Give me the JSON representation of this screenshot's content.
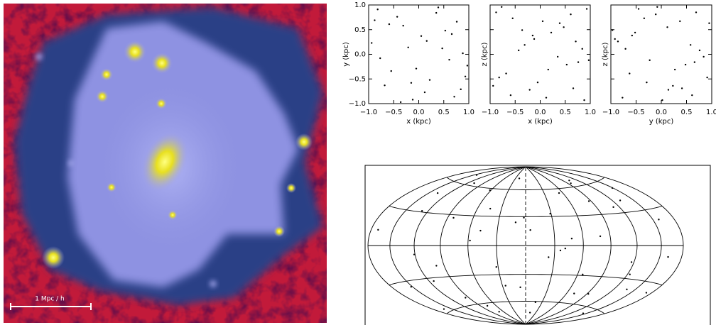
{
  "chart_data": [
    {
      "type": "image",
      "annotation": "1 Mpc / h"
    },
    {
      "type": "scatter",
      "xlabel": "x (kpc)",
      "ylabel": "y (kpc)",
      "color": "#000000",
      "xlim": [
        -1,
        1
      ],
      "ylim": [
        -1,
        1
      ],
      "xticks": [
        {
          "value": -1,
          "label": "−1.0"
        },
        {
          "value": -0.5,
          "label": "−0.5"
        },
        {
          "value": 0,
          "label": "0.0"
        },
        {
          "value": 0.5,
          "label": "0.5"
        },
        {
          "value": 1,
          "label": "1.0"
        }
      ],
      "yticks": [
        {
          "value": -1,
          "label": "−1.0"
        },
        {
          "value": -0.5,
          "label": "−0.5"
        },
        {
          "value": 0,
          "label": "0.0"
        },
        {
          "value": 0.5,
          "label": "0.5"
        },
        {
          "value": 1,
          "label": "1.0"
        }
      ],
      "x": [
        -0.82,
        -0.55,
        -0.31,
        0.12,
        0.47,
        0.76,
        0.93,
        -0.94,
        -0.12,
        0.35,
        0.61,
        -0.68,
        0.05,
        0.88,
        -0.43,
        0.22,
        -0.21,
        0.71,
        -0.77,
        0.53,
        -0.05,
        0.39,
        -0.59,
        0.84,
        -0.36,
        0.16,
        -0.88,
        0.66,
        -0.15,
        0.97
      ],
      "values": [
        0.91,
        -0.34,
        0.58,
        -0.77,
        0.12,
        0.66,
        -0.45,
        0.23,
        -0.92,
        0.84,
        -0.11,
        -0.63,
        0.37,
        0.02,
        0.76,
        -0.52,
        0.14,
        -0.86,
        -0.08,
        0.48,
        -0.29,
        0.95,
        0.61,
        -0.71,
        -0.97,
        0.27,
        0.69,
        0.41,
        -0.58,
        -0.23
      ]
    },
    {
      "type": "scatter",
      "xlabel": "x (kpc)",
      "ylabel": "z (kpc)",
      "color": "#000000",
      "xlim": [
        -1,
        1
      ],
      "ylim": [
        -1,
        1
      ],
      "xticks": [
        {
          "value": -1,
          "label": "−1.0"
        },
        {
          "value": -0.5,
          "label": "−0.5"
        },
        {
          "value": 0,
          "label": "0.0"
        },
        {
          "value": 0.5,
          "label": "0.5"
        },
        {
          "value": 1,
          "label": "1.0"
        }
      ],
      "yticks": [
        -1,
        -0.5,
        0,
        0.5,
        1
      ],
      "x": [
        -0.82,
        -0.55,
        -0.31,
        0.12,
        0.47,
        0.76,
        0.93,
        -0.94,
        -0.12,
        0.35,
        0.61,
        -0.68,
        0.05,
        0.88,
        -0.43,
        0.22,
        -0.21,
        0.71,
        -0.77,
        0.53,
        -0.05,
        0.39,
        -0.59,
        0.84,
        -0.36,
        0.16,
        -0.88,
        0.66,
        -0.15,
        0.97
      ],
      "values": [
        -0.47,
        0.73,
        0.19,
        -0.88,
        0.55,
        -0.16,
        0.92,
        -0.64,
        0.31,
        -0.05,
        0.81,
        -0.39,
        0.67,
        -0.93,
        0.08,
        0.44,
        -0.72,
        0.26,
        0.96,
        -0.21,
        -0.57,
        0.63,
        -0.83,
        0.11,
        0.49,
        -0.31,
        0.85,
        -0.69,
        0.38,
        -0.12
      ]
    },
    {
      "type": "scatter",
      "xlabel": "y (kpc)",
      "ylabel": "z (kpc)",
      "color": "#000000",
      "xlim": [
        -1,
        1
      ],
      "ylim": [
        -1,
        1
      ],
      "xticks": [
        {
          "value": -1,
          "label": "−1.0"
        },
        {
          "value": -0.5,
          "label": "−0.5"
        },
        {
          "value": 0,
          "label": "0.0"
        },
        {
          "value": 0.5,
          "label": "0.5"
        },
        {
          "value": 1,
          "label": "1.0"
        }
      ],
      "yticks": [
        -1,
        -0.5,
        0,
        0.5,
        1
      ],
      "x": [
        0.91,
        -0.34,
        0.58,
        -0.77,
        0.12,
        0.66,
        -0.45,
        0.23,
        -0.92,
        0.84,
        -0.11,
        -0.63,
        0.37,
        0.02,
        0.76,
        -0.52,
        0.14,
        -0.86,
        -0.08,
        0.48,
        -0.29,
        0.95,
        0.61,
        -0.71,
        -0.97,
        0.27,
        0.69,
        0.41,
        -0.58,
        -0.23
      ],
      "values": [
        -0.47,
        0.73,
        0.19,
        -0.88,
        0.55,
        -0.16,
        0.92,
        -0.64,
        0.31,
        -0.05,
        0.81,
        -0.39,
        0.67,
        -0.93,
        0.08,
        0.44,
        -0.72,
        0.26,
        0.96,
        -0.21,
        -0.57,
        0.63,
        -0.83,
        0.11,
        0.49,
        -0.31,
        0.85,
        -0.69,
        0.38,
        -0.12
      ]
    },
    {
      "type": "sky",
      "color": "#000000",
      "xlim": [
        -180,
        180
      ],
      "ylim": [
        -90,
        90
      ],
      "meridians": [
        -180,
        -150,
        -120,
        -90,
        -60,
        -30,
        0,
        30,
        60,
        90,
        120,
        150,
        180
      ],
      "parallels": [
        -60,
        -30,
        0,
        30,
        60
      ],
      "x": [
        -170,
        -152,
        -137,
        -121,
        -108,
        -95,
        -83,
        -71,
        -58,
        -44,
        -32,
        -19,
        -7,
        5,
        18,
        29,
        41,
        54,
        66,
        79,
        92,
        104,
        117,
        131,
        144,
        158,
        172,
        -163,
        -128,
        -99,
        -62,
        -26,
        13,
        48,
        87,
        123,
        161,
        -145,
        -77,
        -11,
        36,
        71,
        112,
        149,
        -114,
        -48,
        24,
        96,
        138,
        -2
      ],
      "values": [
        12,
        -35,
        48,
        -8,
        63,
        -52,
        27,
        -71,
        5,
        38,
        -22,
        74,
        -44,
        16,
        -61,
        33,
        -3,
        55,
        -29,
        9,
        -48,
        67,
        -15,
        41,
        -66,
        21,
        -38,
        -57,
        31,
        -19,
        58,
        -42,
        -74,
        7,
        44,
        -26,
        -9,
        70,
        -63,
        24,
        -5,
        -49,
        36,
        52,
        -33,
        15,
        -12,
        64,
        -39,
        29
      ]
    }
  ]
}
